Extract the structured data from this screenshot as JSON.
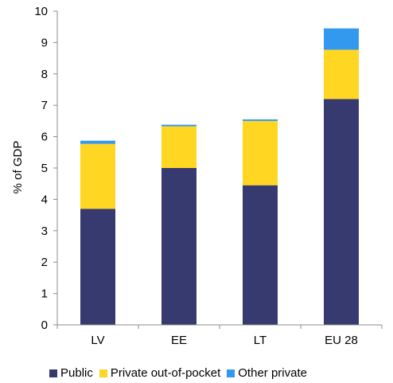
{
  "chart_data": {
    "type": "bar",
    "stacked": true,
    "categories": [
      "LV",
      "EE",
      "LT",
      "EU 28"
    ],
    "series": [
      {
        "name": "Public",
        "color": "#363a6e",
        "values": [
          3.7,
          5.0,
          4.45,
          7.2
        ]
      },
      {
        "name": "Private out-of-pocket",
        "color": "#ffd622",
        "values": [
          2.07,
          1.33,
          2.05,
          1.57
        ]
      },
      {
        "name": "Other private",
        "color": "#3399ee",
        "values": [
          0.1,
          0.05,
          0.05,
          0.68
        ]
      }
    ],
    "title": "",
    "xlabel": "",
    "ylabel": "% of GDP",
    "ylim": [
      0,
      10
    ],
    "yticks": [
      "0",
      "1",
      "2",
      "3",
      "4",
      "5",
      "6",
      "7",
      "8",
      "9",
      "10"
    ],
    "grid": false,
    "legend_position": "bottom"
  }
}
